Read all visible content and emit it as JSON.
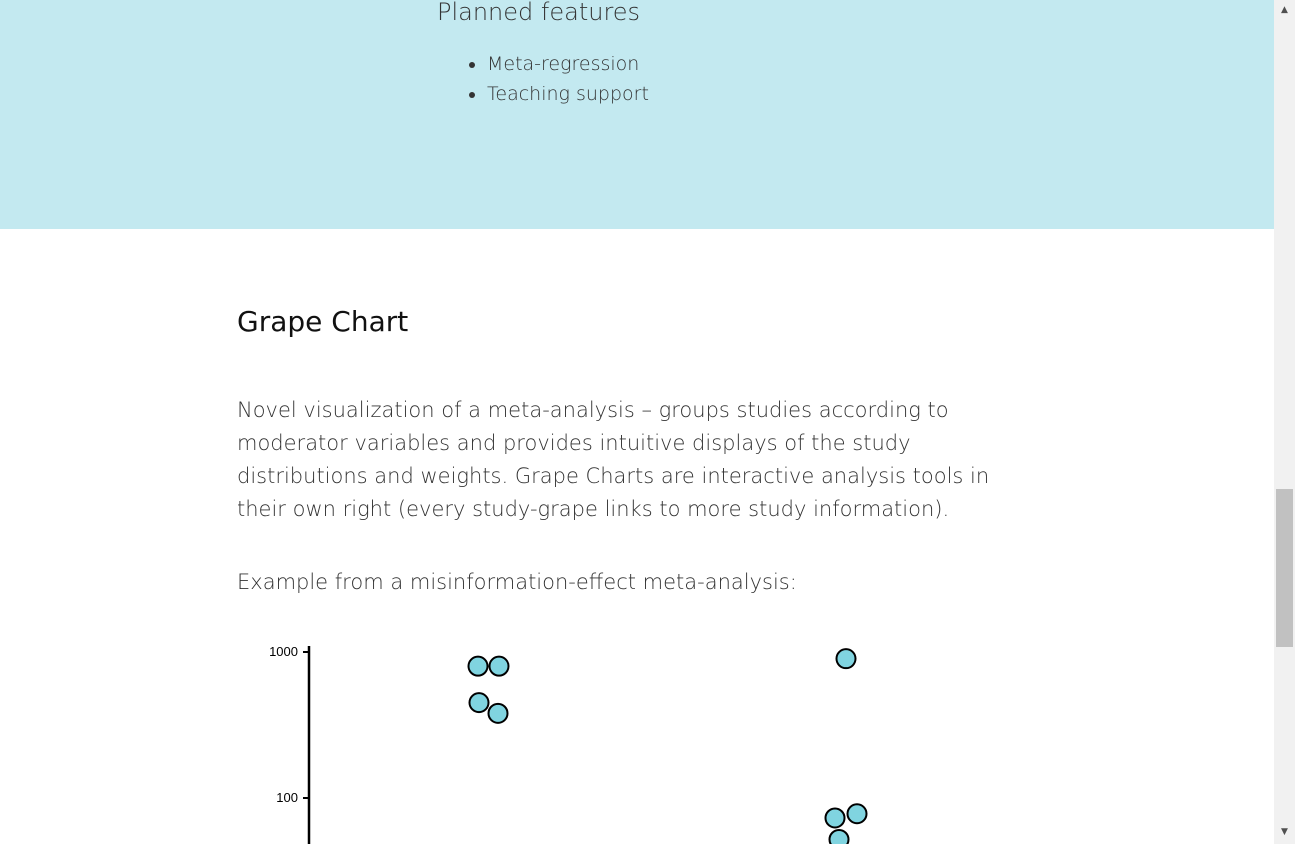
{
  "planned": {
    "title": "Planned features",
    "items": [
      "Meta-regression",
      "Teaching support"
    ]
  },
  "grape_section": {
    "title": "Grape Chart",
    "description": "Novel visualization of a meta-analysis – groups studies according to moderator variables and provides intuitive displays of the study distributions and weights. Grape Charts are interactive analysis tools in their own right (every study-grape links to more study information).",
    "example_caption": "Example from a misinformation-effect meta-analysis:"
  },
  "chart_data": {
    "type": "scatter",
    "title": "",
    "xlabel": "",
    "ylabel": "",
    "y_scale": "log",
    "y_ticks": [
      100,
      1000
    ],
    "y_tick_labels": [
      "100",
      "1000"
    ],
    "ylim": [
      50,
      1000
    ],
    "grid": false,
    "groups": [
      {
        "name": "",
        "points": [
          800,
          800,
          450,
          380
        ]
      },
      {
        "name": "",
        "points": [
          900,
          73,
          78,
          52
        ]
      }
    ],
    "grape_fill": "#80d4e0",
    "grape_stroke": "#000000"
  },
  "colors": {
    "band_background": "#c3e9f0",
    "text": "#333333",
    "heading": "#111111",
    "scrollbar_track": "#f1f1f1",
    "scrollbar_thumb": "#c1c1c1"
  },
  "scrollbar": {
    "up_icon": "triangle-up-icon",
    "down_icon": "triangle-down-icon",
    "up_glyph": "▲",
    "down_glyph": "▼"
  }
}
